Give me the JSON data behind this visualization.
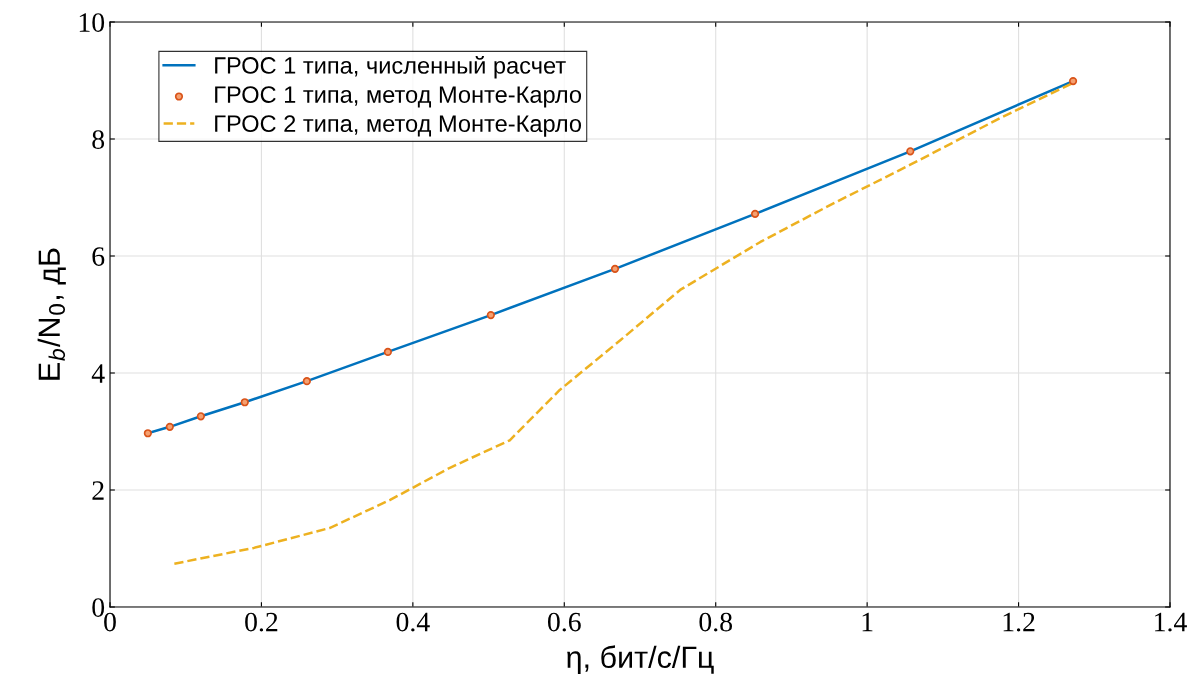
{
  "chart_data": {
    "type": "line",
    "xlabel": "η, бит/с/Гц",
    "ylabel": "E$_{b}$/N$_{0}$, дБ",
    "xlim": [
      0,
      1.4
    ],
    "ylim": [
      0,
      10
    ],
    "xticks": [
      0,
      0.2,
      0.4,
      0.6,
      0.8,
      1,
      1.2,
      1.4
    ],
    "yticks": [
      0,
      2,
      4,
      6,
      8,
      10
    ],
    "grid": true,
    "legend": "top left",
    "series": [
      {
        "name": "ГРОС 1 типа, численный расчет",
        "color": "#0072bd",
        "line_style": "solid",
        "marker": "none",
        "x": [
          0.05,
          0.079,
          0.12,
          0.178,
          0.26,
          0.367,
          0.503,
          0.667,
          0.852,
          1.057,
          1.272
        ],
        "values": [
          2.97,
          3.08,
          3.26,
          3.5,
          3.86,
          4.36,
          4.99,
          5.78,
          6.72,
          7.79,
          8.99
        ]
      },
      {
        "name": "ГРОС 1 типа, метод Монте-Карло",
        "type": "scatter",
        "color": "#d95319",
        "marker": "circle",
        "x": [
          0.05,
          0.079,
          0.12,
          0.178,
          0.26,
          0.367,
          0.503,
          0.667,
          0.852,
          1.057,
          1.272
        ],
        "values": [
          2.97,
          3.08,
          3.26,
          3.5,
          3.86,
          4.36,
          4.99,
          5.78,
          6.72,
          7.79,
          8.99
        ]
      },
      {
        "name": "ГРОС 2 типа, метод Монте-Карло",
        "color": "#edb120",
        "line_style": "dashed",
        "marker": "none",
        "x": [
          0.085,
          0.19,
          0.29,
          0.37,
          0.449,
          0.528,
          0.594,
          0.674,
          0.753,
          0.859,
          0.951,
          1.057,
          1.176,
          1.272
        ],
        "values": [
          0.74,
          1.01,
          1.35,
          1.83,
          2.38,
          2.85,
          3.71,
          4.56,
          5.42,
          6.24,
          6.87,
          7.56,
          8.36,
          8.96
        ]
      }
    ]
  }
}
